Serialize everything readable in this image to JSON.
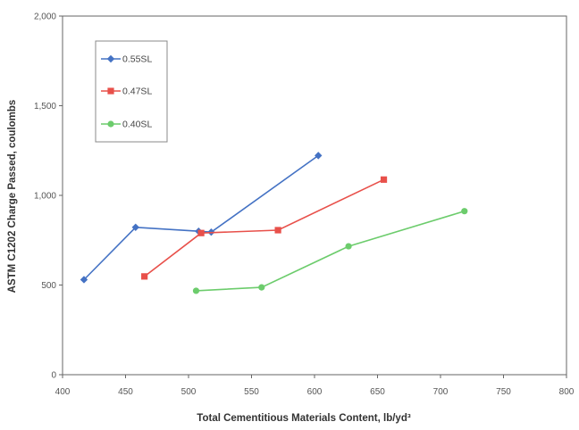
{
  "chart_data": {
    "type": "line",
    "title": "",
    "xlabel": "Total Cementitious Materials Content, lb/yd³",
    "ylabel": "ASTM C1202 Charge Passed, coulombs",
    "xlim": [
      400,
      800
    ],
    "ylim": [
      0,
      2000
    ],
    "x_ticks": [
      400,
      450,
      500,
      550,
      600,
      650,
      700,
      750,
      800
    ],
    "x_tick_labels": [
      "400",
      "450",
      "500",
      "550",
      "600",
      "650",
      "700",
      "750",
      "800"
    ],
    "y_ticks": [
      0,
      500,
      1000,
      1500,
      2000
    ],
    "y_tick_labels": [
      "0",
      "500",
      "1,000",
      "1,500",
      "2,000"
    ],
    "grid": false,
    "legend_position": "top-left",
    "series": [
      {
        "name": "0.55SL",
        "color": "#4472c4",
        "marker": "diamond",
        "points": [
          [
            417,
            530
          ],
          [
            458,
            822
          ],
          [
            508,
            800
          ],
          [
            518,
            795
          ],
          [
            603,
            1222
          ]
        ]
      },
      {
        "name": "0.47SL",
        "color": "#e8504a",
        "marker": "square",
        "points": [
          [
            465,
            548
          ],
          [
            510,
            790
          ],
          [
            571,
            806
          ],
          [
            655,
            1088
          ]
        ]
      },
      {
        "name": "0.40SL",
        "color": "#6ccc6c",
        "marker": "circle",
        "points": [
          [
            506,
            468
          ],
          [
            558,
            487
          ],
          [
            627,
            716
          ],
          [
            719,
            912
          ]
        ]
      }
    ]
  }
}
